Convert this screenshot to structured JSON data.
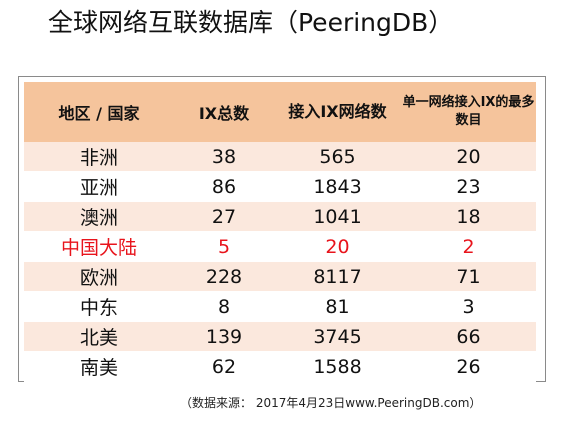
{
  "title": "全球网络互联数据库（PeeringDB）",
  "table": {
    "headers": [
      "地区 / 国家",
      "IX总数",
      "接入IX网络数",
      "单一网络接入IX的最多数目"
    ],
    "rows": [
      [
        "非洲",
        "38",
        "565",
        "20"
      ],
      [
        "亚洲",
        "86",
        "1843",
        "23"
      ],
      [
        "澳洲",
        "27",
        "1041",
        "18"
      ],
      [
        "中国大陆",
        "5",
        "20",
        "2"
      ],
      [
        "欧洲",
        "228",
        "8117",
        "71"
      ],
      [
        "中东",
        "8",
        "81",
        "3"
      ],
      [
        "北美",
        "139",
        "3745",
        "66"
      ],
      [
        "南美",
        "62",
        "1588",
        "26"
      ]
    ],
    "highlight_row": 3,
    "colors": {
      "header_bg": "#f5c49c",
      "odd_row_bg": "#fbe8dd",
      "highlight_text": "#e8141c"
    }
  },
  "source": "（数据来源： 2017年4月23日www.PeeringDB.com）"
}
